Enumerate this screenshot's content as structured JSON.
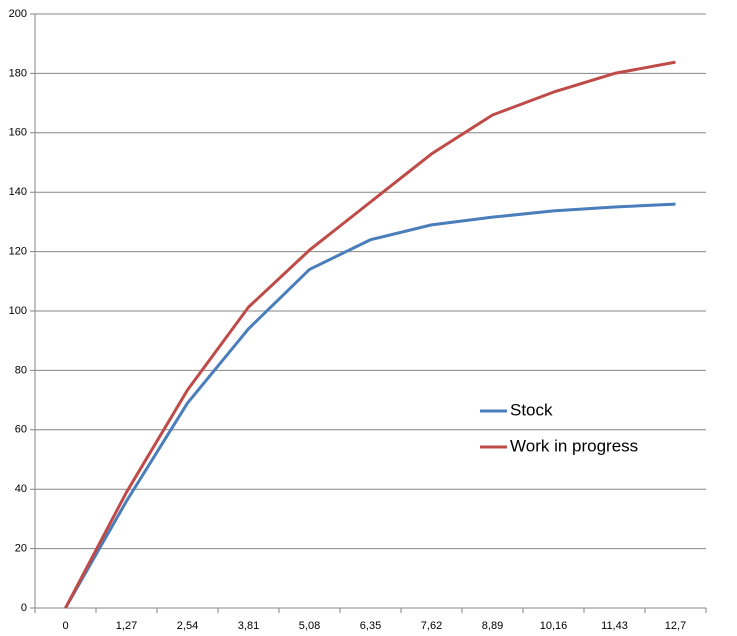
{
  "chart_data": {
    "type": "line",
    "categories": [
      "0",
      "1,27",
      "2,54",
      "3,81",
      "5,08",
      "6,35",
      "7,62",
      "8,89",
      "10,16",
      "11,43",
      "12,7"
    ],
    "series": [
      {
        "name": "Stock",
        "color": "#4a7ebb",
        "values": [
          0,
          36,
          69,
          94,
          114,
          124,
          129,
          131.6,
          133.7,
          135,
          136
        ]
      },
      {
        "name": "Work in progress",
        "color": "#be4b48",
        "values": [
          0,
          39,
          73.4,
          101.3,
          120.5,
          136.7,
          152.9,
          166,
          173.7,
          180,
          183.8
        ]
      }
    ],
    "ylim": [
      0,
      200
    ],
    "yticks": [
      0,
      20,
      40,
      60,
      80,
      100,
      120,
      140,
      160,
      180,
      200
    ],
    "grid": true,
    "legend": "center-right"
  }
}
